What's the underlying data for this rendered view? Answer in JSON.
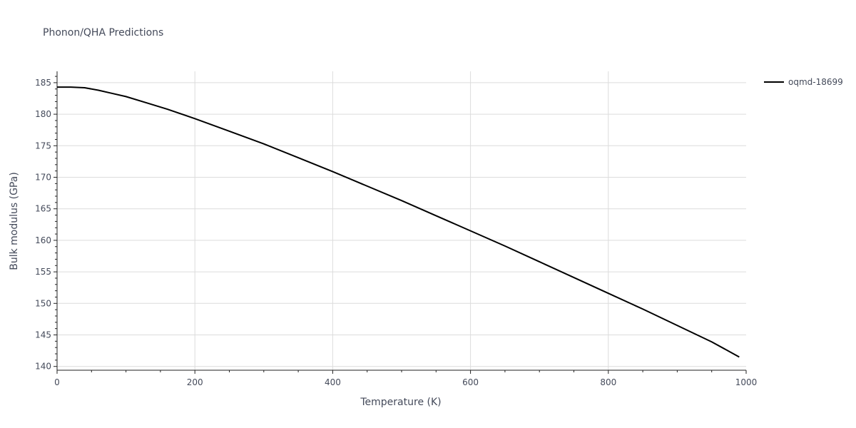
{
  "chart_data": {
    "type": "line",
    "title": "Phonon/QHA Predictions",
    "xlabel": "Temperature (K)",
    "ylabel": "Bulk modulus (GPa)",
    "xlim": [
      0,
      1000
    ],
    "ylim": [
      139.4,
      186.8
    ],
    "x_ticks": [
      0,
      200,
      400,
      600,
      800,
      1000
    ],
    "y_ticks": [
      140,
      145,
      150,
      155,
      160,
      165,
      170,
      175,
      180,
      185
    ],
    "grid": true,
    "legend_position": "top-right",
    "series": [
      {
        "name": "oqmd-18699",
        "color": "#000000",
        "x": [
          0,
          20,
          40,
          60,
          80,
          100,
          130,
          160,
          200,
          250,
          300,
          350,
          400,
          450,
          500,
          550,
          600,
          650,
          700,
          750,
          800,
          850,
          900,
          950,
          990
        ],
        "y": [
          184.3,
          184.3,
          184.2,
          183.8,
          183.3,
          182.8,
          181.8,
          180.8,
          179.3,
          177.3,
          175.3,
          173.1,
          170.9,
          168.6,
          166.3,
          163.9,
          161.5,
          159.1,
          156.6,
          154.1,
          151.6,
          149.1,
          146.5,
          143.9,
          141.5
        ]
      }
    ]
  }
}
